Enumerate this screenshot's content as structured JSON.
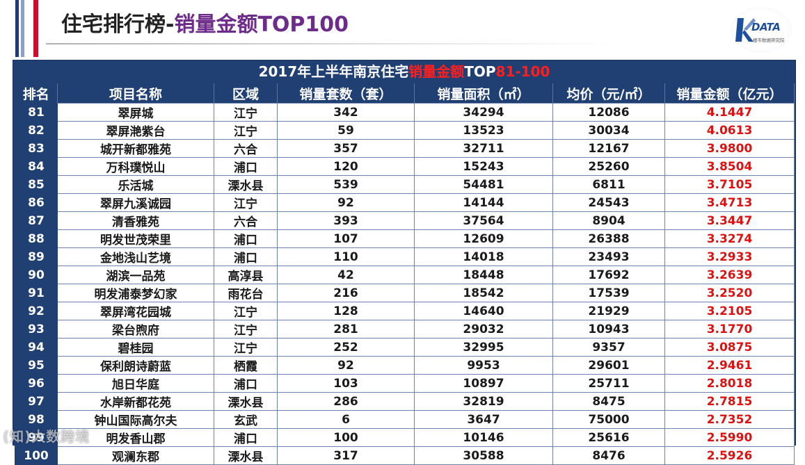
{
  "page": {
    "title_main": "住宅排行榜-",
    "title_accent": "销量金额TOP100"
  },
  "logo": {
    "text": "DATA",
    "subtitle": "楼市数据研究院"
  },
  "table": {
    "caption_prefix": "2017年上半年南京住宅",
    "caption_highlight": "销量金额",
    "caption_mid": "TOP",
    "caption_range": "81-100",
    "headers": [
      "排名",
      "项目名称",
      "区域",
      "销量套数（套）",
      "销量面积（㎡）",
      "均价（元/㎡）",
      "销量金额（亿元）"
    ],
    "rows": [
      [
        "81",
        "翠屏城",
        "江宁",
        "342",
        "34294",
        "12086",
        "4.1447"
      ],
      [
        "82",
        "翠屏滟紫台",
        "江宁",
        "59",
        "13523",
        "30034",
        "4.0613"
      ],
      [
        "83",
        "城开新都雅苑",
        "六合",
        "357",
        "32711",
        "12167",
        "3.9800"
      ],
      [
        "84",
        "万科璞悦山",
        "浦口",
        "120",
        "15243",
        "25260",
        "3.8504"
      ],
      [
        "85",
        "乐活城",
        "溧水县",
        "539",
        "54481",
        "6811",
        "3.7105"
      ],
      [
        "86",
        "翠屏九溪诚园",
        "江宁",
        "92",
        "14144",
        "24543",
        "3.4713"
      ],
      [
        "87",
        "清香雅苑",
        "六合",
        "393",
        "37564",
        "8904",
        "3.3447"
      ],
      [
        "88",
        "明发世茂荣里",
        "浦口",
        "107",
        "12609",
        "26388",
        "3.3274"
      ],
      [
        "89",
        "金地浅山艺境",
        "浦口",
        "110",
        "14018",
        "23493",
        "3.2933"
      ],
      [
        "90",
        "湖滨一品苑",
        "高淳县",
        "42",
        "18448",
        "17692",
        "3.2639"
      ],
      [
        "91",
        "明发浦泰梦幻家",
        "雨花台",
        "216",
        "18542",
        "17539",
        "3.2520"
      ],
      [
        "92",
        "翠屏湾花园城",
        "江宁",
        "128",
        "14640",
        "21929",
        "3.2105"
      ],
      [
        "93",
        "梁台煦府",
        "江宁",
        "281",
        "29032",
        "10943",
        "3.1770"
      ],
      [
        "94",
        "碧桂园",
        "江宁",
        "252",
        "32995",
        "9357",
        "3.0875"
      ],
      [
        "95",
        "保利朗诗蔚蓝",
        "栖霞",
        "92",
        "9953",
        "29601",
        "2.9461"
      ],
      [
        "96",
        "旭日华庭",
        "浦口",
        "103",
        "10897",
        "25711",
        "2.8018"
      ],
      [
        "97",
        "水岸新都花苑",
        "溧水县",
        "286",
        "32819",
        "8475",
        "2.7815"
      ],
      [
        "98",
        "钟山国际高尔夫",
        "玄武",
        "6",
        "3647",
        "75000",
        "2.7352"
      ],
      [
        "99",
        "明发香山郡",
        "浦口",
        "100",
        "10146",
        "25616",
        "2.5990"
      ],
      [
        "100",
        "观澜东郡",
        "溧水县",
        "317",
        "30588",
        "8476",
        "2.5926"
      ]
    ]
  },
  "watermark": "(知)大数跨境",
  "colors": {
    "header_bg": "#203f73",
    "amount_text": "#e01010",
    "title_accent": "#6d2b8a",
    "stripe_red": "#c8102e",
    "stripe_blue": "#1e3a78"
  }
}
